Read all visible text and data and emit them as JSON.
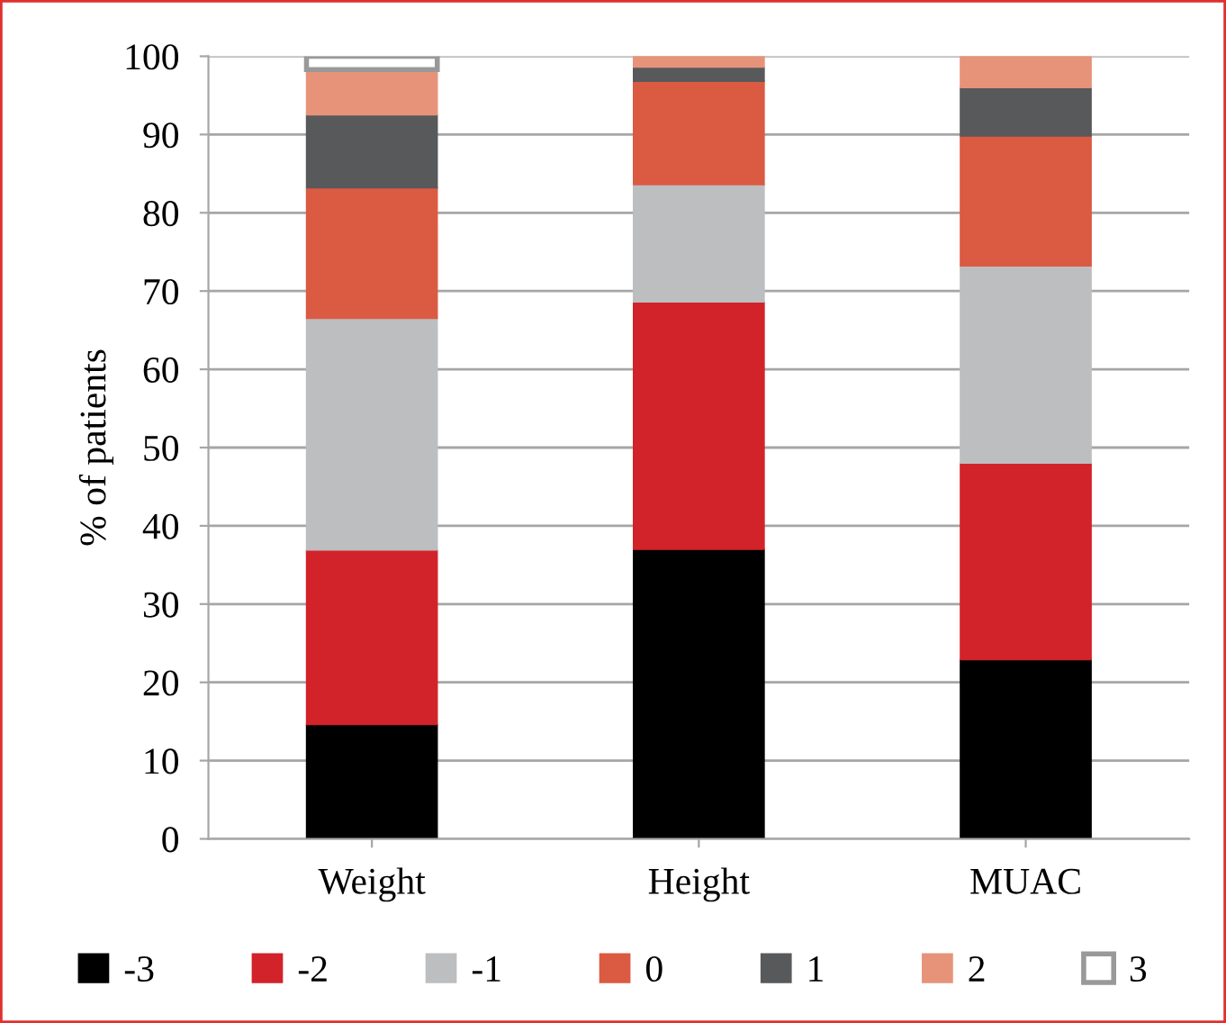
{
  "chart_data": {
    "type": "bar",
    "stacked": true,
    "ylabel": "% of patients",
    "categories": [
      "Weight",
      "Height",
      "MUAC"
    ],
    "series": [
      {
        "name": "-3",
        "color": "#000000",
        "values": [
          14.6,
          37,
          22.9
        ]
      },
      {
        "name": "-2",
        "color": "#d2232a",
        "values": [
          22.3,
          31.6,
          25.1
        ]
      },
      {
        "name": "-1",
        "color": "#bdbec0",
        "values": [
          29.6,
          15,
          25.2
        ]
      },
      {
        "name": "0",
        "color": "#db5a42",
        "values": [
          16.7,
          13.2,
          16.6
        ]
      },
      {
        "name": "1",
        "color": "#58595b",
        "values": [
          9.3,
          1.8,
          6.2
        ]
      },
      {
        "name": "2",
        "color": "#e6937a",
        "values": [
          5.8,
          1.4,
          4.0
        ]
      },
      {
        "name": "3",
        "color": "#ffffff",
        "values": [
          1.7,
          null,
          null
        ]
      }
    ],
    "ylim": [
      0,
      100
    ],
    "yticks": [
      0,
      10,
      20,
      30,
      40,
      50,
      60,
      70,
      80,
      90,
      100
    ],
    "grid": "y",
    "legend": "bottom"
  }
}
